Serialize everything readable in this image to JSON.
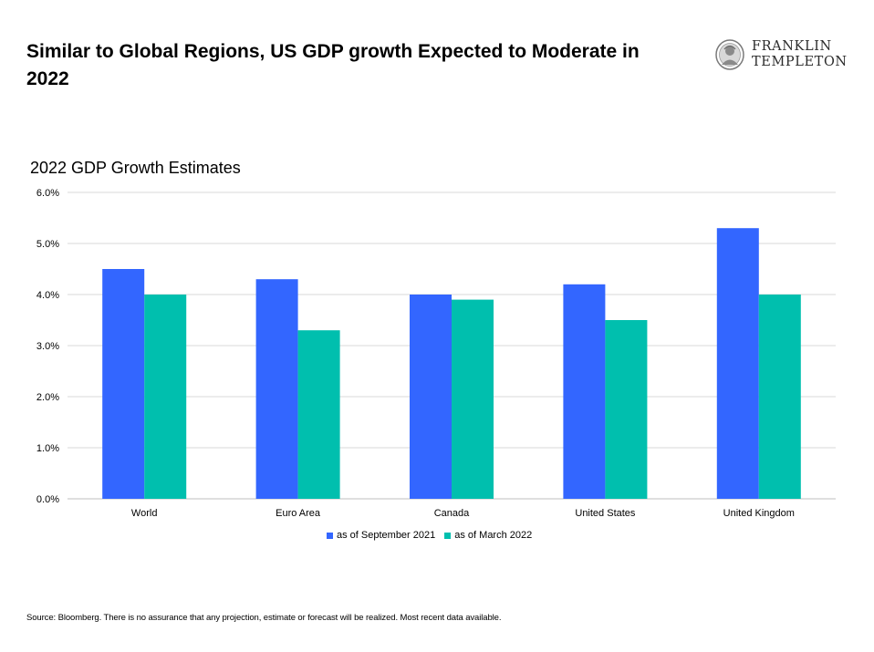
{
  "header": {
    "title": "Similar to Global Regions, US GDP growth Expected to Moderate in 2022",
    "brand_line1": "FRANKLIN",
    "brand_line2": "TEMPLETON"
  },
  "chart_data": {
    "type": "bar",
    "title": "2022 GDP Growth Estimates",
    "xlabel": "",
    "ylabel": "",
    "categories": [
      "World",
      "Euro Area",
      "Canada",
      "United States",
      "United Kingdom"
    ],
    "series": [
      {
        "name": "as of September 2021",
        "color": "#3366ff",
        "values": [
          4.5,
          4.3,
          4.0,
          4.2,
          5.3
        ]
      },
      {
        "name": "as of March 2022",
        "color": "#00bfae",
        "values": [
          4.0,
          3.3,
          3.9,
          3.5,
          4.0
        ]
      }
    ],
    "ylim": [
      0,
      6
    ],
    "yticks": [
      "0.0%",
      "1.0%",
      "2.0%",
      "3.0%",
      "4.0%",
      "5.0%",
      "6.0%"
    ],
    "grid": true,
    "legend_position": "bottom"
  },
  "footer": {
    "source": "Source: Bloomberg. There is no assurance that any projection, estimate or forecast will be realized. Most recent data available."
  }
}
